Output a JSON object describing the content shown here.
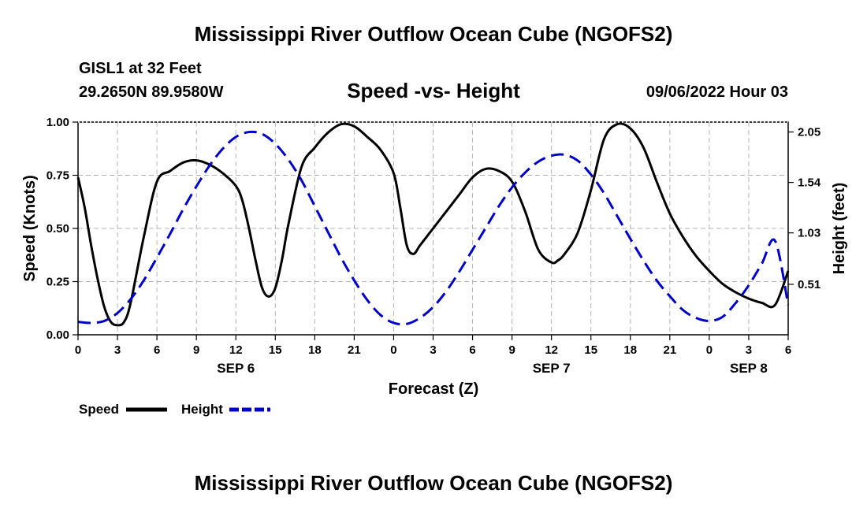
{
  "header": {
    "title": "Mississippi River Outflow Ocean Cube (NGOFS2)",
    "station": "GISL1 at 32 Feet",
    "coords": "29.2650N  89.9580W",
    "subtitle": "Speed -vs- Height",
    "datetime": "09/06/2022 Hour 03"
  },
  "footer": {
    "title": "Mississippi River Outflow Ocean Cube (NGOFS2)"
  },
  "legend": {
    "speed_label": "Speed",
    "height_label": "Height"
  },
  "colors": {
    "speed": "#000000",
    "height": "#0000cc",
    "grid": "#b4b4b4"
  },
  "chart_data": {
    "type": "line",
    "title": "Speed -vs- Height",
    "xlabel": "Forecast (Z)",
    "ylabel": "Speed (Knots)",
    "y2label": "Height (feet)",
    "xlim": [
      0,
      54
    ],
    "ylim": [
      0,
      1.0
    ],
    "y2lim": [
      0.0,
      2.15
    ],
    "x_ticks": [
      0,
      3,
      6,
      9,
      12,
      15,
      18,
      21,
      24,
      27,
      30,
      33,
      36,
      39,
      42,
      45,
      48,
      51,
      54
    ],
    "x_tick_labels": [
      "0",
      "3",
      "6",
      "9",
      "12",
      "15",
      "18",
      "21",
      "0",
      "3",
      "6",
      "9",
      "12",
      "15",
      "18",
      "21",
      "0",
      "3",
      "6"
    ],
    "date_labels": [
      {
        "x": 12,
        "label": "SEP 6"
      },
      {
        "x": 36,
        "label": "SEP 7"
      },
      {
        "x": 51,
        "label": "SEP 8"
      }
    ],
    "y_ticks": [
      0.0,
      0.25,
      0.5,
      0.75,
      1.0
    ],
    "y_tick_labels": [
      "0.00",
      "0.25",
      "0.50",
      "0.75",
      "1.00"
    ],
    "y2_ticks": [
      0.51,
      1.03,
      1.54,
      2.05
    ],
    "y2_tick_labels": [
      "0.51",
      "1.03",
      "1.54",
      "2.05"
    ],
    "grid": true,
    "series": [
      {
        "name": "Speed",
        "axis": "left",
        "style": "solid",
        "x": [
          0,
          0.5,
          1,
          1.5,
          2,
          2.5,
          3,
          3.5,
          4,
          5,
          6,
          7,
          8,
          9,
          10,
          11,
          12,
          12.5,
          13,
          13.5,
          14,
          14.5,
          15,
          15.5,
          16,
          17,
          18,
          19,
          20,
          21,
          22,
          23,
          24,
          24.5,
          25,
          25.5,
          26,
          26.5,
          27,
          28,
          29,
          30,
          31,
          32,
          33,
          34,
          35,
          36,
          36.5,
          37,
          38,
          39,
          40,
          41,
          42,
          43,
          44,
          45,
          46,
          47,
          48,
          49,
          50,
          51,
          52,
          53,
          54
        ],
        "values": [
          0.74,
          0.6,
          0.42,
          0.26,
          0.13,
          0.06,
          0.045,
          0.06,
          0.15,
          0.46,
          0.72,
          0.77,
          0.81,
          0.82,
          0.8,
          0.76,
          0.7,
          0.63,
          0.5,
          0.35,
          0.22,
          0.18,
          0.22,
          0.35,
          0.52,
          0.79,
          0.88,
          0.95,
          0.99,
          0.98,
          0.93,
          0.87,
          0.76,
          0.6,
          0.42,
          0.38,
          0.42,
          0.46,
          0.5,
          0.58,
          0.66,
          0.74,
          0.78,
          0.77,
          0.72,
          0.58,
          0.4,
          0.34,
          0.35,
          0.38,
          0.48,
          0.68,
          0.92,
          0.99,
          0.97,
          0.88,
          0.72,
          0.57,
          0.46,
          0.37,
          0.3,
          0.24,
          0.2,
          0.17,
          0.15,
          0.14,
          0.3
        ],
        "color": "#000000"
      },
      {
        "name": "Height",
        "axis": "right",
        "style": "dashed",
        "x": [
          0,
          1,
          2,
          3,
          4,
          5,
          6,
          7,
          8,
          9,
          10,
          11,
          12,
          13,
          14,
          15,
          16,
          17,
          18,
          19,
          20,
          21,
          22,
          23,
          24,
          25,
          26,
          27,
          28,
          29,
          30,
          31,
          32,
          33,
          34,
          35,
          36,
          37,
          38,
          39,
          40,
          41,
          42,
          43,
          44,
          45,
          46,
          47,
          48,
          49,
          50,
          51,
          52,
          53,
          54
        ],
        "values": [
          0.13,
          0.12,
          0.14,
          0.22,
          0.36,
          0.55,
          0.78,
          1.02,
          1.27,
          1.5,
          1.71,
          1.88,
          2.0,
          2.05,
          2.03,
          1.93,
          1.77,
          1.56,
          1.3,
          1.04,
          0.78,
          0.55,
          0.35,
          0.2,
          0.12,
          0.11,
          0.17,
          0.28,
          0.44,
          0.64,
          0.86,
          1.08,
          1.3,
          1.49,
          1.64,
          1.75,
          1.81,
          1.82,
          1.76,
          1.62,
          1.43,
          1.2,
          0.97,
          0.75,
          0.55,
          0.39,
          0.25,
          0.17,
          0.14,
          0.18,
          0.32,
          0.5,
          0.72,
          0.95,
          0.3
        ],
        "color": "#0000cc"
      }
    ]
  }
}
